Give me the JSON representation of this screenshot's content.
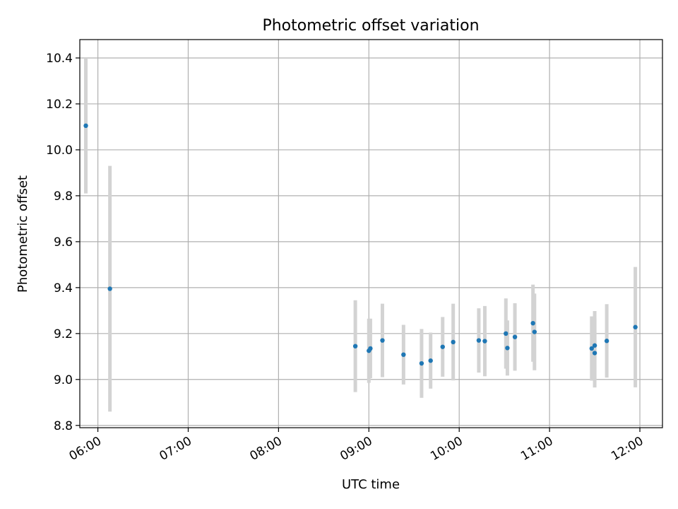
{
  "chart_data": {
    "type": "scatter",
    "title": "Photometric offset variation",
    "xlabel": "UTC time",
    "ylabel": "Photometric offset",
    "xlim": [
      "05:48",
      "12:15"
    ],
    "ylim": [
      8.79,
      10.48
    ],
    "x_ticks": [
      "06:00",
      "07:00",
      "08:00",
      "09:00",
      "10:00",
      "11:00",
      "12:00"
    ],
    "y_ticks": [
      "8.8",
      "9.0",
      "9.2",
      "9.4",
      "9.6",
      "9.8",
      "10.0",
      "10.2",
      "10.4"
    ],
    "grid": true,
    "colors": {
      "point": "#1f77b4",
      "errorbar": "#d3d3d3"
    },
    "points": [
      {
        "x": "05:52",
        "y": 10.105,
        "err": 0.295
      },
      {
        "x": "06:08",
        "y": 9.395,
        "err": 0.535
      },
      {
        "x": "08:51",
        "y": 9.145,
        "err": 0.2
      },
      {
        "x": "09:00",
        "y": 9.125,
        "err": 0.14
      },
      {
        "x": "09:01",
        "y": 9.135,
        "err": 0.13
      },
      {
        "x": "09:09",
        "y": 9.17,
        "err": 0.16
      },
      {
        "x": "09:23",
        "y": 9.108,
        "err": 0.13
      },
      {
        "x": "09:35",
        "y": 9.07,
        "err": 0.15
      },
      {
        "x": "09:41",
        "y": 9.082,
        "err": 0.122
      },
      {
        "x": "09:49",
        "y": 9.142,
        "err": 0.13
      },
      {
        "x": "09:56",
        "y": 9.163,
        "err": 0.167
      },
      {
        "x": "10:13",
        "y": 9.17,
        "err": 0.14
      },
      {
        "x": "10:17",
        "y": 9.167,
        "err": 0.153
      },
      {
        "x": "10:31",
        "y": 9.2,
        "err": 0.153
      },
      {
        "x": "10:32",
        "y": 9.137,
        "err": 0.12
      },
      {
        "x": "10:37",
        "y": 9.185,
        "err": 0.147
      },
      {
        "x": "10:49",
        "y": 9.245,
        "err": 0.168
      },
      {
        "x": "10:50",
        "y": 9.207,
        "err": 0.167
      },
      {
        "x": "11:28",
        "y": 9.135,
        "err": 0.14
      },
      {
        "x": "11:30",
        "y": 9.148,
        "err": 0.15
      },
      {
        "x": "11:30",
        "y": 9.115,
        "err": 0.15
      },
      {
        "x": "11:38",
        "y": 9.168,
        "err": 0.16
      },
      {
        "x": "11:57",
        "y": 9.228,
        "err": 0.262
      }
    ]
  }
}
